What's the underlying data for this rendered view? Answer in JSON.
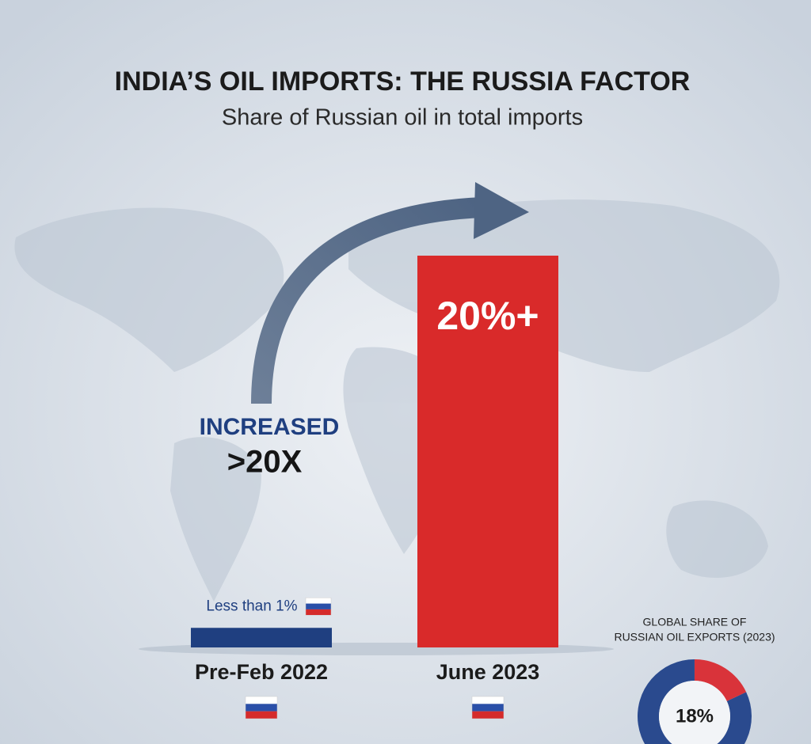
{
  "chart_data": [
    {
      "type": "bar",
      "title": "INDIA’S OIL IMPORTS: THE RUSSIA FACTOR",
      "subtitle": "Share of Russian oil in total imports",
      "categories": [
        "Pre-Feb 2022",
        "June 2023"
      ],
      "values": [
        1,
        20
      ],
      "value_labels": [
        "Less than 1%",
        "20%+"
      ],
      "colors": [
        "#1f3f80",
        "#d92a2a"
      ],
      "annotations": [
        "INCREASED",
        ">20X"
      ]
    },
    {
      "type": "pie",
      "title_lines": [
        "GLOBAL SHARE OF",
        "RUSSIAN OIL EXPORTS (2023)"
      ],
      "values": [
        18
      ],
      "value_labels": [
        "18%"
      ],
      "colors": [
        "#d9333a",
        "#2a4a8e"
      ]
    }
  ]
}
